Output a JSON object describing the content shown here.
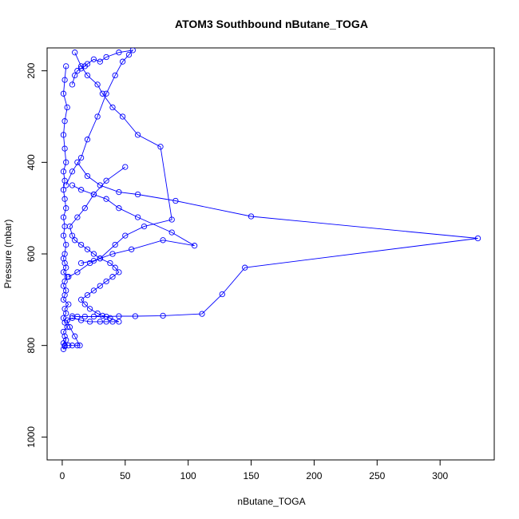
{
  "chart_data": {
    "type": "line",
    "title": "ATOM3 Southbound nButane_TOGA",
    "xlabel": "nButane_TOGA",
    "ylabel": "Pressure (mbar)",
    "xlim": [
      -12,
      343
    ],
    "ylim": [
      1050,
      150
    ],
    "y_reversed": true,
    "x_ticks": [
      0,
      50,
      100,
      150,
      200,
      250,
      300
    ],
    "y_ticks": [
      200,
      400,
      600,
      800,
      1000
    ],
    "series_color": "#0000ff",
    "marker": "open-circle",
    "series": [
      {
        "x": [
          1,
          2,
          1,
          3,
          2,
          1,
          4,
          2,
          1,
          3,
          2,
          5,
          1,
          2,
          3,
          1,
          2,
          4,
          1,
          3,
          2,
          1,
          2,
          3,
          1,
          2,
          1,
          3,
          2,
          1,
          2,
          1,
          3,
          2,
          1,
          2,
          4,
          1,
          2,
          3
        ],
        "y": [
          808,
          802,
          795,
          788,
          780,
          770,
          760,
          750,
          740,
          730,
          720,
          710,
          700,
          690,
          680,
          670,
          660,
          650,
          640,
          630,
          620,
          610,
          600,
          580,
          560,
          540,
          520,
          500,
          480,
          460,
          440,
          420,
          400,
          370,
          340,
          310,
          280,
          250,
          220,
          190
        ]
      },
      {
        "x": [
          2,
          5,
          8,
          12,
          14,
          10,
          6,
          4,
          8,
          15,
          22,
          30,
          35,
          40,
          45,
          38,
          32,
          28,
          22,
          18,
          15,
          20,
          25,
          30,
          35,
          40,
          45,
          42,
          38,
          30,
          25,
          20,
          15,
          10,
          8,
          6,
          12,
          18,
          25,
          35,
          50
        ],
        "y": [
          800,
          800,
          800,
          800,
          800,
          780,
          760,
          745,
          740,
          745,
          748,
          748,
          748,
          748,
          748,
          740,
          735,
          730,
          720,
          710,
          700,
          690,
          680,
          670,
          660,
          650,
          640,
          630,
          620,
          610,
          600,
          590,
          580,
          570,
          560,
          540,
          520,
          500,
          470,
          440,
          410
        ]
      },
      {
        "x": [
          8,
          12,
          18,
          25,
          35,
          45,
          58,
          80,
          111,
          127,
          145,
          330,
          150,
          90,
          60,
          45,
          30,
          20,
          12
        ],
        "y": [
          736,
          737,
          737,
          737,
          737,
          736,
          736,
          735,
          731,
          688,
          630,
          566,
          518,
          484,
          470,
          465,
          450,
          430,
          400
        ]
      },
      {
        "x": [
          15,
          25,
          40,
          55,
          80,
          105,
          87,
          60,
          45,
          35,
          25,
          15,
          8
        ],
        "y": [
          620,
          615,
          600,
          590,
          570,
          582,
          553,
          520,
          500,
          480,
          470,
          460,
          450
        ],
        "note": ""
      },
      {
        "x": [
          5,
          12,
          22,
          30,
          42,
          50,
          65,
          87,
          78,
          60,
          48,
          40,
          32,
          28,
          20,
          15,
          10
        ],
        "y": [
          650,
          640,
          620,
          610,
          580,
          560,
          540,
          525,
          366,
          340,
          300,
          280,
          250,
          230,
          210,
          190,
          160
        ]
      },
      {
        "x": [
          3,
          8,
          15,
          20,
          28,
          35,
          42,
          48,
          53,
          56,
          45,
          35,
          30,
          25,
          20,
          18,
          15,
          12,
          10,
          8
        ],
        "y": [
          450,
          420,
          390,
          350,
          300,
          250,
          210,
          180,
          165,
          155,
          160,
          170,
          180,
          175,
          185,
          190,
          195,
          200,
          210,
          230
        ]
      }
    ]
  }
}
